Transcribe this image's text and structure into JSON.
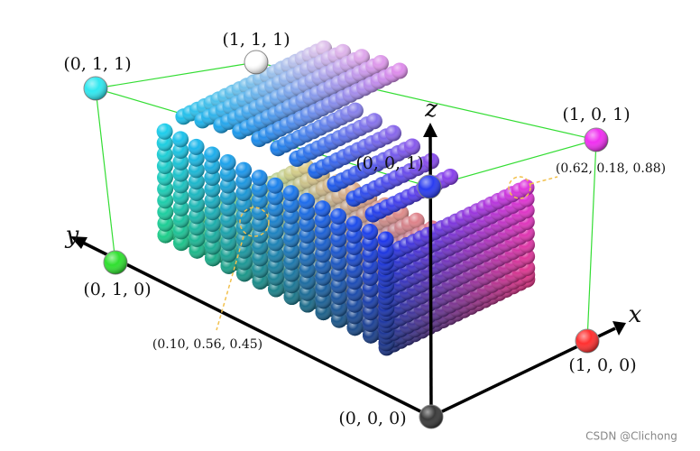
{
  "corners": [
    {
      "label": "(0, 0, 0)",
      "color": "#3a3a3a"
    },
    {
      "label": "(1, 0, 0)",
      "color": "#ff3030"
    },
    {
      "label": "(0, 1, 0)",
      "color": "#30e030"
    },
    {
      "label": "(0, 0, 1)",
      "color": "#2a3cf0"
    },
    {
      "label": "(1, 0, 1)",
      "color": "#f030f0"
    },
    {
      "label": "(0, 1, 1)",
      "color": "#30e8f0"
    },
    {
      "label": "(1, 1, 1)",
      "color": "#ffffff"
    }
  ],
  "axes": {
    "x": "x",
    "y": "y",
    "z": "z"
  },
  "annotations": [
    "(0.10, 0.56, 0.45)",
    "(0.62, 0.18, 0.88)"
  ],
  "watermark": "CSDN @Clichong"
}
